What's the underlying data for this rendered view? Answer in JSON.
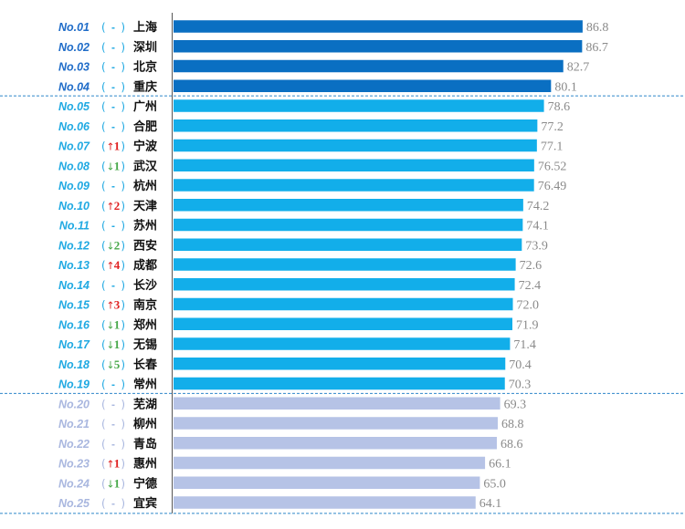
{
  "chart_data": {
    "type": "bar",
    "orientation": "horizontal",
    "value_range": [
      0,
      100
    ],
    "grid": false,
    "colors": {
      "tier1": "#0a6fc2",
      "tier2": "#12aeea",
      "tier3": "#b6c3e6",
      "rank_tier1": "#1f6cc8",
      "rank_tier2": "#20a9e2",
      "rank_tier3": "#a9b7df",
      "up": "#e02020",
      "down": "#48a84a",
      "city": "#111111",
      "value": "#8a8a8a",
      "divider": "#2e86c9",
      "axis": "#555555"
    },
    "rows": [
      {
        "rank": "No.01",
        "change_dir": "same",
        "change": "-",
        "city": "上海",
        "value": 86.8,
        "value_label": "86.8",
        "tier": 1
      },
      {
        "rank": "No.02",
        "change_dir": "same",
        "change": "-",
        "city": "深圳",
        "value": 86.7,
        "value_label": "86.7",
        "tier": 1
      },
      {
        "rank": "No.03",
        "change_dir": "same",
        "change": "-",
        "city": "北京",
        "value": 82.7,
        "value_label": "82.7",
        "tier": 1
      },
      {
        "rank": "No.04",
        "change_dir": "same",
        "change": "-",
        "city": "重庆",
        "value": 80.1,
        "value_label": "80.1",
        "tier": 1
      },
      {
        "rank": "No.05",
        "change_dir": "same",
        "change": "-",
        "city": "广州",
        "value": 78.6,
        "value_label": "78.6",
        "tier": 2
      },
      {
        "rank": "No.06",
        "change_dir": "same",
        "change": "-",
        "city": "合肥",
        "value": 77.2,
        "value_label": "77.2",
        "tier": 2
      },
      {
        "rank": "No.07",
        "change_dir": "up",
        "change": "1",
        "city": "宁波",
        "value": 77.1,
        "value_label": "77.1",
        "tier": 2
      },
      {
        "rank": "No.08",
        "change_dir": "down",
        "change": "1",
        "city": "武汉",
        "value": 76.52,
        "value_label": "76.52",
        "tier": 2
      },
      {
        "rank": "No.09",
        "change_dir": "same",
        "change": "-",
        "city": "杭州",
        "value": 76.49,
        "value_label": "76.49",
        "tier": 2
      },
      {
        "rank": "No.10",
        "change_dir": "up",
        "change": "2",
        "city": "天津",
        "value": 74.2,
        "value_label": "74.2",
        "tier": 2
      },
      {
        "rank": "No.11",
        "change_dir": "same",
        "change": "-",
        "city": "苏州",
        "value": 74.1,
        "value_label": "74.1",
        "tier": 2
      },
      {
        "rank": "No.12",
        "change_dir": "down",
        "change": "2",
        "city": "西安",
        "value": 73.9,
        "value_label": "73.9",
        "tier": 2
      },
      {
        "rank": "No.13",
        "change_dir": "up",
        "change": "4",
        "city": "成都",
        "value": 72.6,
        "value_label": "72.6",
        "tier": 2
      },
      {
        "rank": "No.14",
        "change_dir": "same",
        "change": "-",
        "city": "长沙",
        "value": 72.4,
        "value_label": "72.4",
        "tier": 2
      },
      {
        "rank": "No.15",
        "change_dir": "up",
        "change": "3",
        "city": "南京",
        "value": 72.0,
        "value_label": "72.0",
        "tier": 2
      },
      {
        "rank": "No.16",
        "change_dir": "down",
        "change": "1",
        "city": "郑州",
        "value": 71.9,
        "value_label": "71.9",
        "tier": 2
      },
      {
        "rank": "No.17",
        "change_dir": "down",
        "change": "1",
        "city": "无锡",
        "value": 71.4,
        "value_label": "71.4",
        "tier": 2
      },
      {
        "rank": "No.18",
        "change_dir": "down",
        "change": "5",
        "city": "长春",
        "value": 70.4,
        "value_label": "70.4",
        "tier": 2
      },
      {
        "rank": "No.19",
        "change_dir": "same",
        "change": "-",
        "city": "常州",
        "value": 70.3,
        "value_label": "70.3",
        "tier": 2
      },
      {
        "rank": "No.20",
        "change_dir": "same",
        "change": "-",
        "city": "芜湖",
        "value": 69.3,
        "value_label": "69.3",
        "tier": 3
      },
      {
        "rank": "No.21",
        "change_dir": "same",
        "change": "-",
        "city": "柳州",
        "value": 68.8,
        "value_label": "68.8",
        "tier": 3
      },
      {
        "rank": "No.22",
        "change_dir": "same",
        "change": "-",
        "city": "青岛",
        "value": 68.6,
        "value_label": "68.6",
        "tier": 3
      },
      {
        "rank": "No.23",
        "change_dir": "up",
        "change": "1",
        "city": "惠州",
        "value": 66.1,
        "value_label": "66.1",
        "tier": 3
      },
      {
        "rank": "No.24",
        "change_dir": "down",
        "change": "1",
        "city": "宁德",
        "value": 65.0,
        "value_label": "65.0",
        "tier": 3
      },
      {
        "rank": "No.25",
        "change_dir": "same",
        "change": "-",
        "city": "宜宾",
        "value": 64.1,
        "value_label": "64.1",
        "tier": 3
      }
    ]
  }
}
